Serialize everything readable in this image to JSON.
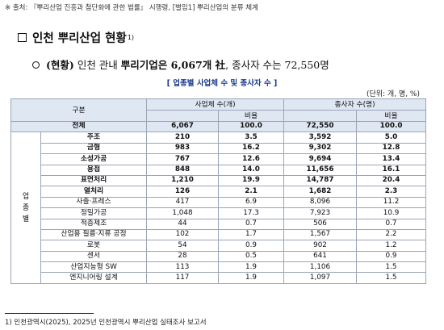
{
  "top_note": "※ 출처: 『뿌리산업 진흥과 첨단화에 관한 법률』 시행령, [별임1] 뿌리산업의 분류 체계",
  "section": {
    "title": "인천 뿌리산업 현황",
    "sup": "1)"
  },
  "summary": {
    "prefix": "(현황)",
    "text1": " 인천 관내 ",
    "bold": "뿌리기업은 6,067개 社",
    "text2": ", 종사자 수는 72,550명"
  },
  "table_caption": "[ 업종별 사업체 수 및 종사자 수 ]",
  "unit_note": "(단위: 개, 명, %)",
  "table": {
    "headers": {
      "category": "구분",
      "companies": "사업체 수(개)",
      "workers": "종사자 수(명)",
      "ratio": "비율"
    },
    "group_label": [
      "업",
      "종",
      "별"
    ],
    "total": {
      "name": "전체",
      "companies": "6,067",
      "c_ratio": "100.0",
      "workers": "72,550",
      "w_ratio": "100.0"
    },
    "rows": [
      {
        "name": "주조",
        "companies": "210",
        "c_ratio": "3.5",
        "workers": "3,592",
        "w_ratio": "5.0"
      },
      {
        "name": "금형",
        "companies": "983",
        "c_ratio": "16.2",
        "workers": "9,302",
        "w_ratio": "12.8"
      },
      {
        "name": "소성가공",
        "companies": "767",
        "c_ratio": "12.6",
        "workers": "9,694",
        "w_ratio": "13.4"
      },
      {
        "name": "용접",
        "companies": "848",
        "c_ratio": "14.0",
        "workers": "11,656",
        "w_ratio": "16.1"
      },
      {
        "name": "표면처리",
        "companies": "1,210",
        "c_ratio": "19.9",
        "workers": "14,787",
        "w_ratio": "20.4"
      },
      {
        "name": "열처리",
        "companies": "126",
        "c_ratio": "2.1",
        "workers": "1,682",
        "w_ratio": "2.3"
      },
      {
        "name": "사출·프레스",
        "companies": "417",
        "c_ratio": "6.9",
        "workers": "8,096",
        "w_ratio": "11.2"
      },
      {
        "name": "정밀가공",
        "companies": "1,048",
        "c_ratio": "17.3",
        "workers": "7,923",
        "w_ratio": "10.9"
      },
      {
        "name": "적층제조",
        "companies": "44",
        "c_ratio": "0.7",
        "workers": "506",
        "w_ratio": "0.7"
      },
      {
        "name": "산업용 필름·지류 공정",
        "companies": "102",
        "c_ratio": "1.7",
        "workers": "1,567",
        "w_ratio": "2.2"
      },
      {
        "name": "로봇",
        "companies": "54",
        "c_ratio": "0.9",
        "workers": "902",
        "w_ratio": "1.2"
      },
      {
        "name": "센서",
        "companies": "28",
        "c_ratio": "0.5",
        "workers": "641",
        "w_ratio": "0.9"
      },
      {
        "name": "산업지능형 SW",
        "companies": "113",
        "c_ratio": "1.9",
        "workers": "1,106",
        "w_ratio": "1.5"
      },
      {
        "name": "엔지니어링 설계",
        "companies": "117",
        "c_ratio": "1.9",
        "workers": "1,097",
        "w_ratio": "1.5"
      }
    ]
  },
  "footnote": "1) 인천광역시(2025), 2025년 인천광역시 뿌리산업 실태조사 보고서"
}
